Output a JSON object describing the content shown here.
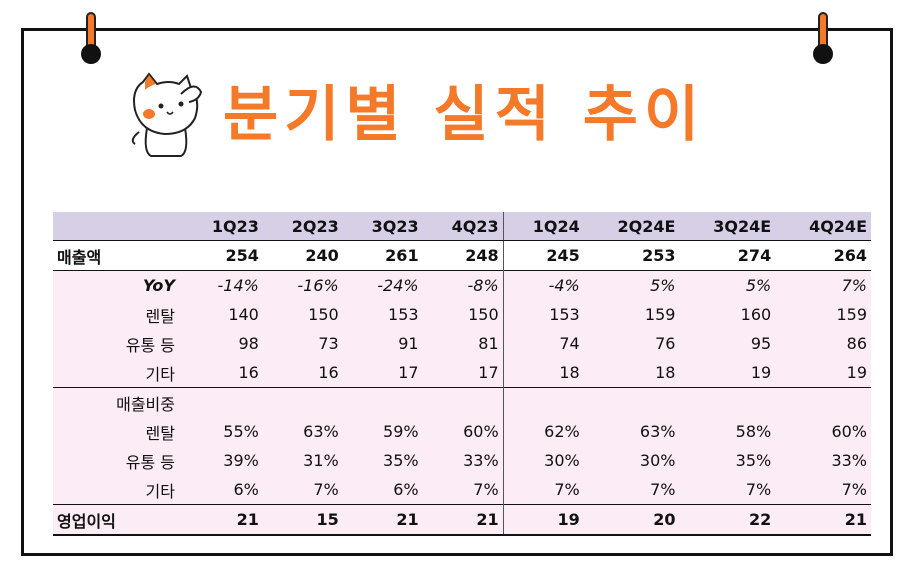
{
  "title": "분기별 실적 추이",
  "mascot_icon": "cat-saluting-icon",
  "colors": {
    "accent": "#f47a2a",
    "header_bg": "#d7cfe6",
    "row_bg": "#fcecf5"
  },
  "table": {
    "headers": [
      "",
      "1Q23",
      "2Q23",
      "3Q23",
      "4Q23",
      "1Q24",
      "2Q24E",
      "3Q24E",
      "4Q24E"
    ],
    "revenue": {
      "label": "매출액",
      "values": [
        "254",
        "240",
        "261",
        "248",
        "245",
        "253",
        "274",
        "264"
      ]
    },
    "yoy": {
      "label": "YoY",
      "values": [
        "-14%",
        "-16%",
        "-24%",
        "-8%",
        "-4%",
        "5%",
        "5%",
        "7%"
      ]
    },
    "rental": {
      "label": "렌탈",
      "values": [
        "140",
        "150",
        "153",
        "150",
        "153",
        "159",
        "160",
        "159"
      ]
    },
    "retail": {
      "label": "유통 등",
      "values": [
        "98",
        "73",
        "91",
        "81",
        "74",
        "76",
        "95",
        "86"
      ]
    },
    "other": {
      "label": "기타",
      "values": [
        "16",
        "16",
        "17",
        "17",
        "18",
        "18",
        "19",
        "19"
      ]
    },
    "share_header": {
      "label": "매출비중"
    },
    "share_rental": {
      "label": "렌탈",
      "values": [
        "55%",
        "63%",
        "59%",
        "60%",
        "62%",
        "63%",
        "58%",
        "60%"
      ]
    },
    "share_retail": {
      "label": "유통 등",
      "values": [
        "39%",
        "31%",
        "35%",
        "33%",
        "30%",
        "30%",
        "35%",
        "33%"
      ]
    },
    "share_other": {
      "label": "기타",
      "values": [
        "6%",
        "7%",
        "6%",
        "7%",
        "7%",
        "7%",
        "7%",
        "7%"
      ]
    },
    "operating_profit": {
      "label": "영업이익",
      "values": [
        "21",
        "15",
        "21",
        "21",
        "19",
        "20",
        "22",
        "21"
      ]
    }
  }
}
